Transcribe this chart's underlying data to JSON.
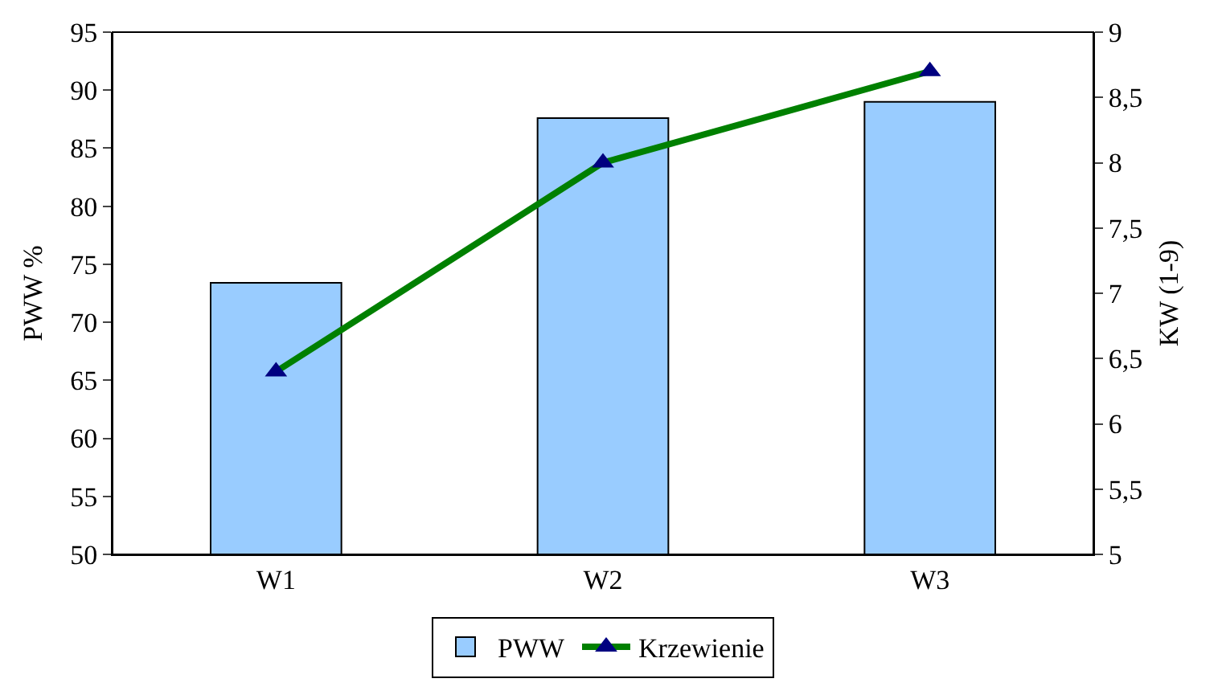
{
  "chart_data": {
    "type": "bar",
    "categories": [
      "W1",
      "W2",
      "W3"
    ],
    "ylabel": "PWW %",
    "y2label": "KW (1-9)",
    "series": [
      {
        "name": "PWW",
        "color": "#99ccff",
        "values": [
          73.4,
          87.6,
          89.0
        ]
      },
      {
        "name": "Krzewienie",
        "type": "line",
        "axis": "y2",
        "color": "#008000",
        "values": [
          6.4,
          8.0,
          8.7
        ]
      }
    ],
    "ylim": [
      50,
      95
    ],
    "yticks": [
      50,
      55,
      60,
      65,
      70,
      75,
      80,
      85,
      90,
      95
    ],
    "y2lim": [
      5,
      9
    ],
    "y2ticks": [
      5,
      {
        "value": 5.5,
        "label": "5,5"
      },
      6,
      {
        "value": 6.5,
        "label": "6,5"
      },
      7,
      {
        "value": 7.5,
        "label": "7,5"
      },
      8,
      {
        "value": 8.5,
        "label": "8,5"
      },
      9
    ],
    "marker": "triangle",
    "grid": false,
    "legend": "bottom"
  }
}
